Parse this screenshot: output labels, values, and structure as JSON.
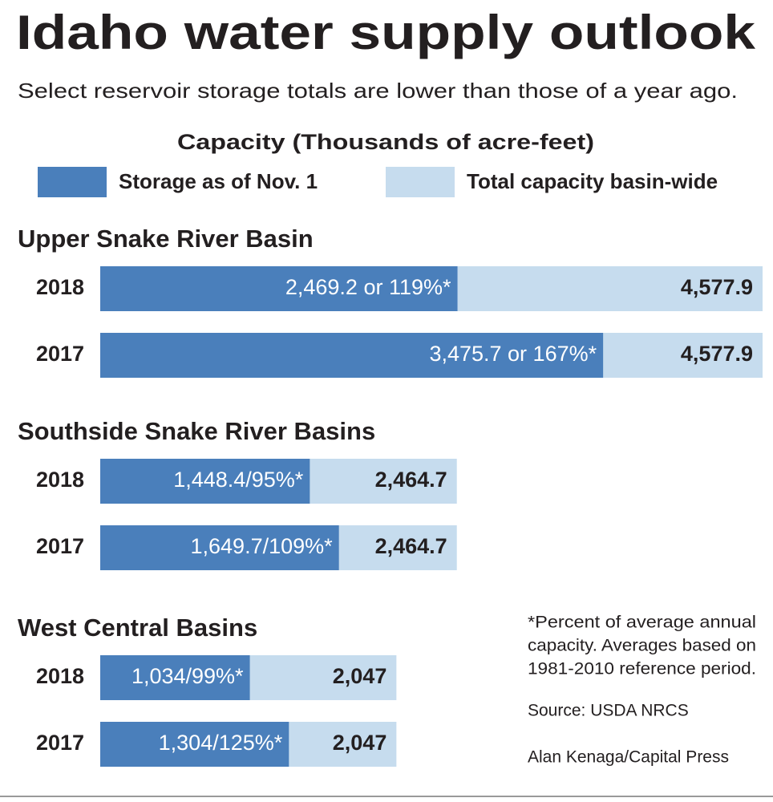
{
  "title": "Idaho water supply outlook",
  "subtitle": "Select reservoir storage totals are lower than those of a year ago.",
  "chart_data": {
    "type": "bar",
    "orientation": "horizontal",
    "axis_title": "Capacity (Thousands of acre-feet)",
    "xlim": [
      0,
      4600
    ],
    "series": [
      {
        "name": "Storage as of Nov. 1",
        "color": "#4a7fbb"
      },
      {
        "name": "Total capacity basin-wide",
        "color": "#c6dcee"
      }
    ],
    "panels": [
      {
        "title": "Upper Snake River Basin",
        "categories": [
          "2018",
          "2017"
        ],
        "storage": [
          2469.2,
          3475.7
        ],
        "storage_labels": [
          "2,469.2 or 119%*",
          "3,475.7 or 167%*"
        ],
        "capacity": [
          4577.9,
          4577.9
        ],
        "capacity_labels": [
          "4,577.9",
          "4,577.9"
        ]
      },
      {
        "title": "Southside Snake River Basins",
        "categories": [
          "2018",
          "2017"
        ],
        "storage": [
          1448.4,
          1649.7
        ],
        "storage_labels": [
          "1,448.4/95%*",
          "1,649.7/109%*"
        ],
        "capacity": [
          2464.7,
          2464.7
        ],
        "capacity_labels": [
          "2,464.7",
          "2,464.7"
        ]
      },
      {
        "title": "West Central Basins",
        "categories": [
          "2018",
          "2017"
        ],
        "storage": [
          1034,
          1304
        ],
        "storage_labels": [
          "1,034/99%*",
          "1,304/125%*"
        ],
        "capacity": [
          2047,
          2047
        ],
        "capacity_labels": [
          "2,047",
          "2,047"
        ]
      }
    ]
  },
  "note": [
    "*Percent of average annual",
    "capacity. Averages based on",
    "1981-2010 reference period."
  ],
  "source": "Source: USDA NRCS",
  "credit": "Alan Kenaga/Capital Press"
}
